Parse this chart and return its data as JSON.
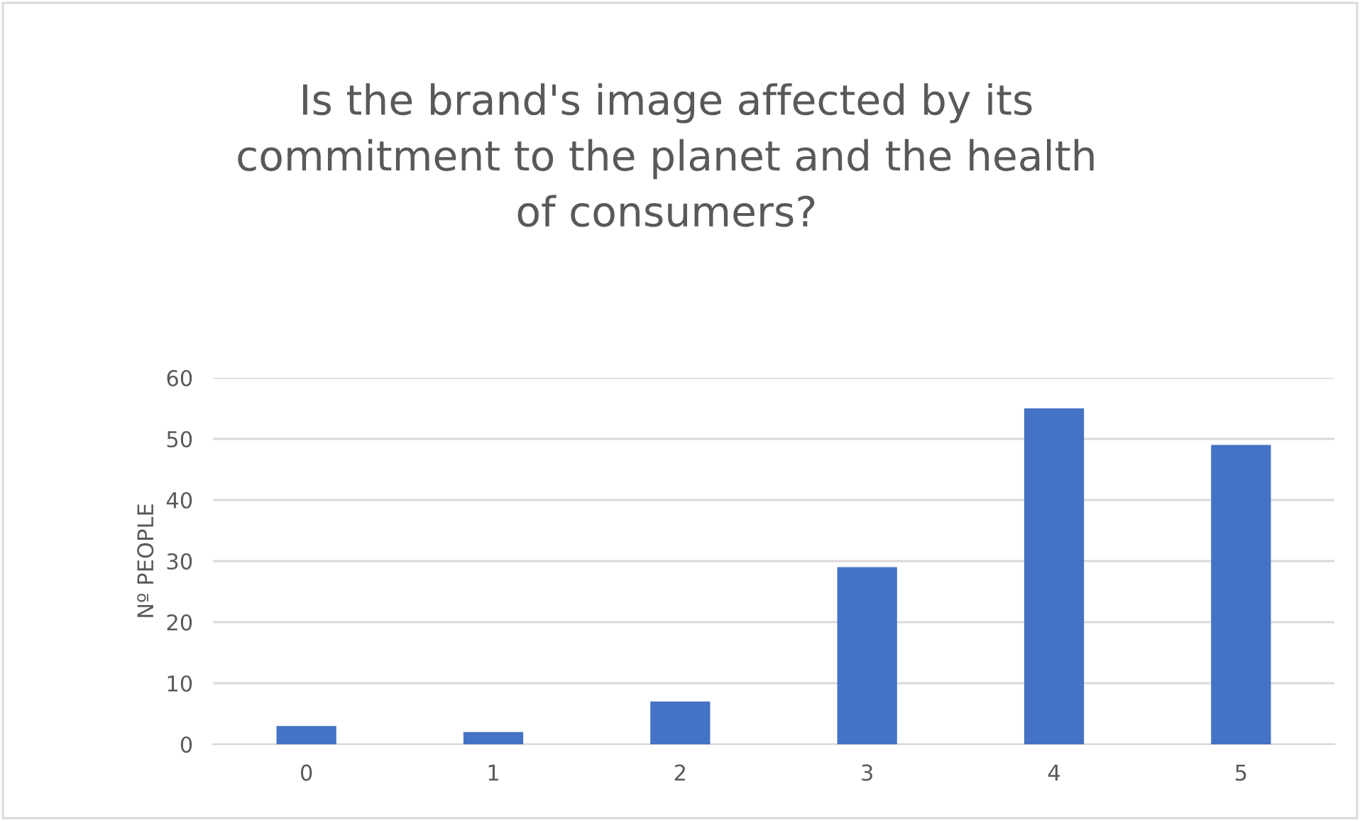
{
  "chart_data": {
    "type": "bar",
    "title": "Is the brand's image affected by its\ncommitment to the planet and the health\nof consumers?",
    "ylabel": "Nº PEOPLE",
    "categories": [
      "0",
      "1",
      "2",
      "3",
      "4",
      "5"
    ],
    "values": [
      3,
      2,
      7,
      29,
      55,
      49
    ],
    "color": "#4472c4",
    "ylim": [
      0,
      60
    ],
    "yticks": [
      0,
      10,
      20,
      30,
      40,
      50,
      60
    ],
    "grid": "y"
  }
}
